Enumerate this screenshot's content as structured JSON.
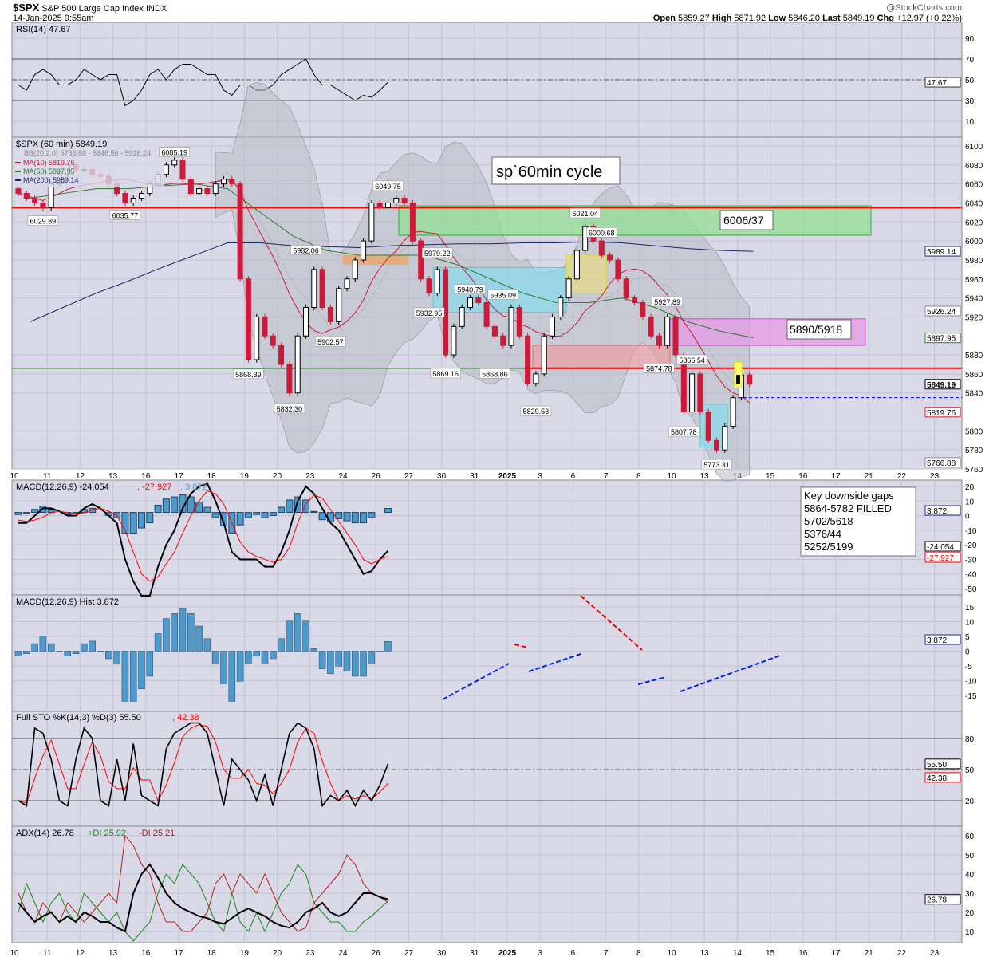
{
  "header": {
    "symbol": "$SPX",
    "name": "S&P 500 Large Cap Index",
    "exchange": "INDX",
    "datetime": "14-Jan-2025 9:55am",
    "watermark": "@StockCharts.com",
    "open_label": "Open",
    "open": "5859.27",
    "high_label": "High",
    "high": "5871.92",
    "low_label": "Low",
    "low": "5846.20",
    "last_label": "Last",
    "last": "5849.19",
    "chg_label": "Chg",
    "chg": "+12.97 (+0.22%)"
  },
  "colors": {
    "background": "#d9d9e8",
    "grid": "#c3c3d6",
    "up": "#000000",
    "down": "#cc1a3a",
    "ma10": "#cc1a3a",
    "ma50": "#2e7d2e",
    "ma200": "#1a2a66",
    "macd_hist": "#4d9bcc"
  },
  "chart_data": [
    {
      "type": "line",
      "panel": "rsi",
      "legend": "RSI(14) 47.67",
      "ylim": [
        0,
        100
      ],
      "ticks": [
        90,
        70,
        50,
        30,
        10
      ],
      "last_label": "47.67",
      "values": [
        45,
        40,
        55,
        60,
        55,
        45,
        45,
        50,
        60,
        55,
        50,
        55,
        55,
        25,
        30,
        40,
        55,
        60,
        50,
        60,
        65,
        65,
        60,
        55,
        55,
        40,
        35,
        45,
        45,
        40,
        40,
        45,
        55,
        60,
        65,
        70,
        55,
        45,
        45,
        40,
        35,
        30,
        35,
        33,
        40,
        47.67
      ]
    },
    {
      "type": "candlestick",
      "panel": "price",
      "legend": {
        "title": "$SPX (60 min) 5849.19",
        "bb": "BB(20,2.0) 5766.88 - 5846.56 - 5926.24",
        "ma10": "MA(10) 5819.76",
        "ma50": "MA(50) 5897.95",
        "ma200": "MA(200) 5989.14"
      },
      "ylim": [
        5760,
        6100
      ],
      "ticks": [
        6100,
        6080,
        6060,
        6040,
        6020,
        6000,
        5980,
        5960,
        5940,
        5920,
        5880,
        5860,
        5840,
        5800,
        5780,
        5760
      ],
      "axis_tags": [
        {
          "v": "5989.14",
          "c": "#1a2a66"
        },
        {
          "v": "5926.24",
          "c": "#8a8a9a"
        },
        {
          "v": "5897.95",
          "c": "#2e7d2e"
        },
        {
          "v": "5849.19",
          "c": "#000000"
        },
        {
          "v": "5819.76",
          "c": "#cc1a3a"
        },
        {
          "v": "5766.88",
          "c": "#8a8a9a"
        }
      ],
      "x_labels": [
        "10",
        "11",
        "12",
        "13",
        "16",
        "17",
        "18",
        "19",
        "20",
        "23",
        "24",
        "26",
        "27",
        "30",
        "31",
        "2025",
        "3",
        "6",
        "7",
        "8",
        "10",
        "13",
        "14",
        "15",
        "16",
        "17",
        "21",
        "22",
        "23"
      ],
      "first_open": 6055,
      "sessions": [
        {
          "closes": [
            6050,
            6045,
            6040,
            6035
          ],
          "ma50": 6045,
          "ma200": 5915,
          "labels": [
            {
              "text": "6029.89",
              "v": 6029.89,
              "pos": "below",
              "k": 3
            }
          ]
        },
        {
          "closes": [
            6060,
            6070,
            6080,
            6075
          ],
          "ma50": 6050,
          "ma200": 5930,
          "labels": []
        },
        {
          "closes": [
            6075,
            6070,
            6068,
            6060
          ],
          "ma50": 6055,
          "ma200": 5945,
          "labels": []
        },
        {
          "closes": [
            6050,
            6040,
            6045,
            6050
          ],
          "ma50": 6055,
          "ma200": 5958,
          "labels": [
            {
              "text": "6035.77",
              "v": 6035.77,
              "pos": "below",
              "k": 1
            }
          ]
        },
        {
          "closes": [
            6060,
            6070,
            6080,
            6085
          ],
          "ma50": 6058,
          "ma200": 5972,
          "labels": [
            {
              "text": "6085.19",
              "v": 6085.19,
              "pos": "above",
              "k": 3
            }
          ]
        },
        {
          "closes": [
            6065,
            6050,
            6055,
            6050
          ],
          "ma50": 6060,
          "ma200": 5985,
          "labels": []
        },
        {
          "closes": [
            6060,
            6065,
            6060,
            5960
          ],
          "ma50": 6055,
          "ma200": 5998,
          "labels": []
        },
        {
          "closes": [
            5875,
            5920,
            5900,
            5890
          ],
          "ma50": 6030,
          "ma200": 5998,
          "labels": [
            {
              "text": "5868.39",
              "v": 5868.39,
              "pos": "below",
              "k": 0
            }
          ]
        },
        {
          "closes": [
            5870,
            5840,
            5900,
            5930
          ],
          "ma50": 6005,
          "ma200": 5995,
          "labels": [
            {
              "text": "5832.30",
              "v": 5832.3,
              "pos": "below",
              "k": 1
            },
            {
              "text": "5982.06",
              "v": 5982.06,
              "pos": "above",
              "k": 3
            }
          ]
        },
        {
          "closes": [
            5970,
            5930,
            5915,
            5950
          ],
          "ma50": 5990,
          "ma200": 5994,
          "labels": [
            {
              "text": "5902.57",
              "v": 5902.57,
              "pos": "below",
              "k": 2
            }
          ]
        },
        {
          "closes": [
            5960,
            5980,
            6000,
            6040
          ],
          "ma50": 5985,
          "ma200": 5993,
          "labels": []
        },
        {
          "closes": [
            6035,
            6040,
            6045,
            6040
          ],
          "ma50": 5985,
          "ma200": 5995,
          "labels": [
            {
              "text": "6049.75",
              "v": 6049.75,
              "pos": "above",
              "k": 1
            }
          ]
        },
        {
          "closes": [
            6000,
            5960,
            5945,
            5970
          ],
          "ma50": 5985,
          "ma200": 5996,
          "labels": [
            {
              "text": "5979.22",
              "v": 5979.22,
              "pos": "above",
              "k": 3
            },
            {
              "text": "5932.95",
              "v": 5932.95,
              "pos": "below",
              "k": 2
            }
          ]
        },
        {
          "closes": [
            5880,
            5910,
            5930,
            5940
          ],
          "ma50": 5975,
          "ma200": 5997,
          "labels": [
            {
              "text": "5940.79",
              "v": 5940.79,
              "pos": "above",
              "k": 3
            },
            {
              "text": "5869.16",
              "v": 5869.16,
              "pos": "below",
              "k": 0
            }
          ]
        },
        {
          "closes": [
            5935,
            5910,
            5900,
            5890
          ],
          "ma50": 5960,
          "ma200": 5997,
          "labels": [
            {
              "text": "5935.09",
              "v": 5935.09,
              "pos": "above",
              "k": 3
            },
            {
              "text": "5868.86",
              "v": 5868.86,
              "pos": "below",
              "k": 2
            }
          ]
        },
        {
          "closes": [
            5930,
            5900,
            5850,
            5860
          ],
          "ma50": 5945,
          "ma200": 5998,
          "labels": [
            {
              "text": "5829.53",
              "v": 5829.53,
              "pos": "below",
              "k": 3
            }
          ]
        },
        {
          "closes": [
            5900,
            5920,
            5940,
            5960
          ],
          "ma50": 5935,
          "ma200": 5998,
          "labels": []
        },
        {
          "closes": [
            5990,
            6015,
            6000,
            5985
          ],
          "ma50": 5935,
          "ma200": 5999,
          "labels": [
            {
              "text": "6021.04",
              "v": 6021.04,
              "pos": "above",
              "k": 1
            },
            {
              "text": "6000.68",
              "v": 6000.68,
              "pos": "above",
              "k": 3
            }
          ]
        },
        {
          "closes": [
            5980,
            5960,
            5940,
            5935
          ],
          "ma50": 5940,
          "ma200": 5998,
          "labels": []
        },
        {
          "closes": [
            5920,
            5900,
            5890,
            5920
          ],
          "ma50": 5930,
          "ma200": 5995,
          "labels": [
            {
              "text": "5927.89",
              "v": 5927.89,
              "pos": "above",
              "k": 3
            },
            {
              "text": "5874.78",
              "v": 5874.78,
              "pos": "below",
              "k": 2
            }
          ]
        },
        {
          "closes": [
            5880,
            5820,
            5860,
            5820
          ],
          "ma50": 5915,
          "ma200": 5992,
          "labels": [
            {
              "text": "5866.54",
              "v": 5866.54,
              "pos": "above",
              "k": 2
            },
            {
              "text": "5807.78",
              "v": 5807.78,
              "pos": "below",
              "k": 1
            }
          ]
        },
        {
          "closes": [
            5790,
            5780,
            5805,
            5835
          ],
          "ma50": 5905,
          "ma200": 5990,
          "labels": [
            {
              "text": "5773.31",
              "v": 5773.31,
              "pos": "below",
              "k": 1
            }
          ]
        },
        {
          "closes": [
            5859,
            5849.19
          ],
          "ma50": 5898,
          "ma200": 5989,
          "labels": []
        }
      ],
      "annotations": {
        "title": "sp`60min cycle",
        "zone_upper": "6006/37",
        "zone_mid": "5890/5918",
        "resistance_upper": 6035,
        "support": 5866,
        "last_price_line": 5835
      }
    },
    {
      "type": "line",
      "panel": "macd",
      "legend": {
        "main": "MACD(12,26,9) -24.054",
        "signal": ", -27.927",
        "hist": ", 3.872"
      },
      "ylim": [
        -55,
        25
      ],
      "ticks": [
        20,
        10,
        0,
        -10,
        -20,
        -30,
        -40,
        -50
      ],
      "axis_tags": [
        {
          "v": "3.872",
          "c": "#1a2a88"
        },
        {
          "v": "-24.054",
          "c": "#000000"
        },
        {
          "v": "-27.927",
          "c": "#ff0000"
        }
      ],
      "macd": [
        -5,
        -5,
        0,
        5,
        5,
        3,
        0,
        0,
        5,
        8,
        5,
        0,
        -5,
        -30,
        -45,
        -55,
        -55,
        -35,
        -20,
        -10,
        5,
        15,
        20,
        22,
        10,
        -5,
        -25,
        -30,
        -30,
        -30,
        -35,
        -35,
        -25,
        -10,
        10,
        20,
        15,
        5,
        -5,
        -10,
        -20,
        -30,
        -40,
        -38,
        -30,
        -24.054
      ],
      "signal": [
        -3,
        -4,
        -3,
        -1,
        2,
        3,
        2,
        1,
        2,
        4,
        5,
        3,
        0,
        -10,
        -25,
        -40,
        -45,
        -42,
        -33,
        -25,
        -12,
        0,
        10,
        17,
        15,
        8,
        -5,
        -18,
        -25,
        -28,
        -30,
        -32,
        -30,
        -22,
        -5,
        8,
        14,
        12,
        4,
        -4,
        -12,
        -20,
        -30,
        -33,
        -30,
        -27.927
      ],
      "gaps_box": {
        "title": "Key downside gaps",
        "items": [
          "5864-5782 FILLED",
          "5702/5618",
          "5376/44",
          "5252/5199"
        ]
      }
    },
    {
      "type": "bar",
      "panel": "macd_hist",
      "legend": "MACD(12,26,9) Hist 3.872",
      "ylim": [
        -20,
        20
      ],
      "ticks": [
        15,
        10,
        5,
        0,
        -5,
        -10,
        -15
      ],
      "last_label": "3.872"
    },
    {
      "type": "line",
      "panel": "stochastic",
      "legend": {
        "main": "Full STO %K(14,3) %D(3) 55.50",
        "d": ", 42.38"
      },
      "ylim": [
        0,
        100
      ],
      "ticks": [
        80,
        50,
        20
      ],
      "axis_tags": [
        "55.50",
        "42.38"
      ],
      "k": [
        20,
        15,
        90,
        85,
        60,
        20,
        15,
        60,
        90,
        80,
        20,
        15,
        60,
        20,
        75,
        25,
        20,
        15,
        70,
        85,
        90,
        95,
        95,
        85,
        50,
        15,
        60,
        50,
        40,
        20,
        45,
        15,
        50,
        85,
        95,
        90,
        70,
        15,
        25,
        20,
        30,
        15,
        30,
        20,
        35,
        55.5
      ]
    },
    {
      "type": "line",
      "panel": "adx",
      "legend": {
        "main": "ADX(14) 26.78",
        "pdi": "+DI 25.92",
        "mdi": "-DI 25.21"
      },
      "ylim": [
        0,
        70
      ],
      "ticks": [
        60,
        50,
        40,
        30,
        20,
        10
      ],
      "last_label": "26.78",
      "adx": [
        25,
        20,
        15,
        18,
        20,
        15,
        18,
        15,
        20,
        18,
        15,
        15,
        12,
        10,
        30,
        40,
        45,
        38,
        30,
        25,
        22,
        20,
        18,
        17,
        15,
        14,
        17,
        20,
        22,
        20,
        18,
        15,
        13,
        12,
        15,
        20,
        22,
        25,
        20,
        18,
        20,
        25,
        30,
        30,
        28,
        26.78
      ],
      "pdi": [
        20,
        35,
        25,
        15,
        25,
        30,
        20,
        15,
        30,
        25,
        20,
        15,
        20,
        10,
        5,
        10,
        15,
        30,
        40,
        35,
        45,
        40,
        35,
        25,
        15,
        10,
        30,
        15,
        10,
        20,
        10,
        20,
        30,
        35,
        45,
        40,
        25,
        20,
        15,
        15,
        10,
        10,
        15,
        18,
        22,
        25.92
      ],
      "mdi": [
        30,
        20,
        15,
        25,
        20,
        15,
        25,
        20,
        15,
        20,
        25,
        30,
        25,
        60,
        55,
        45,
        40,
        25,
        15,
        15,
        10,
        10,
        15,
        20,
        35,
        40,
        30,
        40,
        35,
        30,
        40,
        30,
        20,
        15,
        10,
        12,
        25,
        30,
        35,
        40,
        50,
        45,
        35,
        30,
        28,
        25.21
      ]
    }
  ]
}
